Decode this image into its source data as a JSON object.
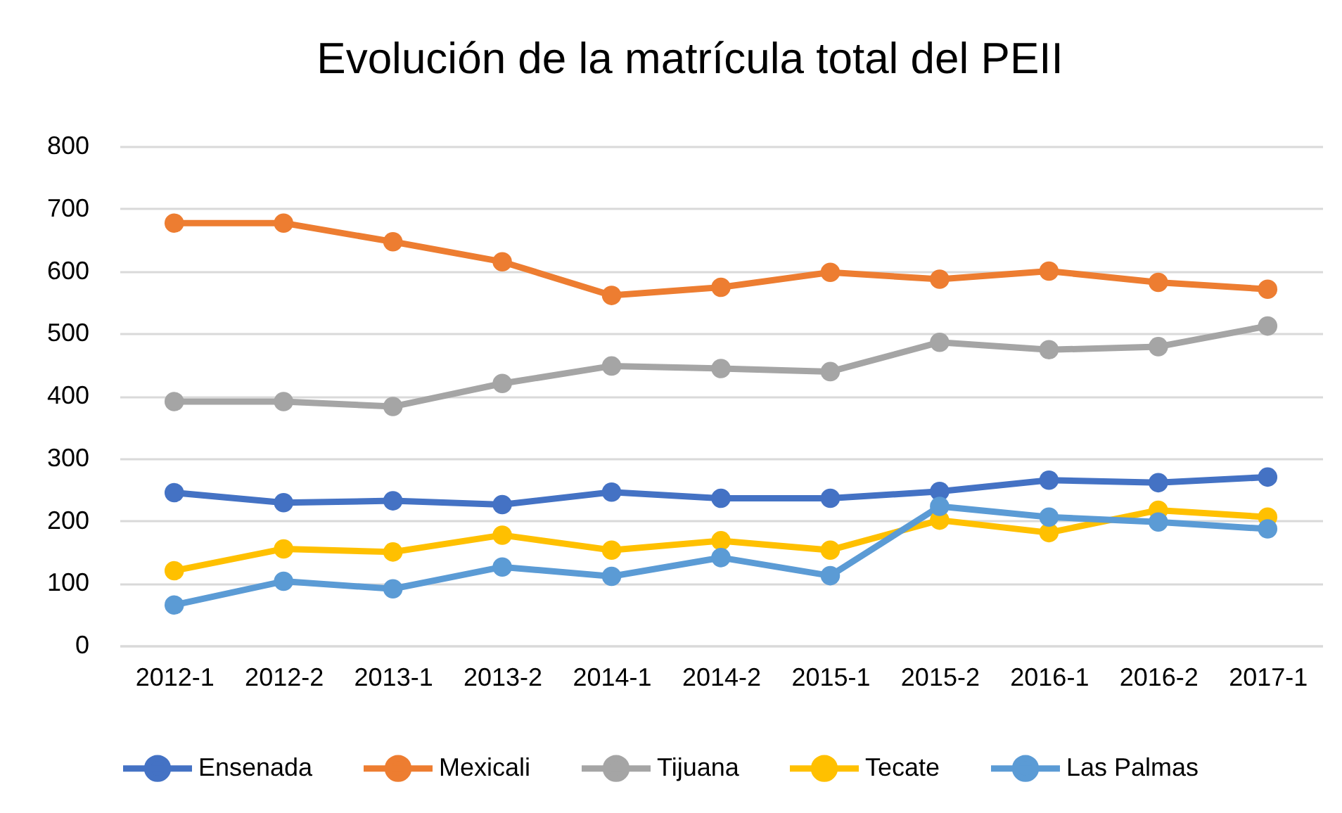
{
  "chart_data": {
    "type": "line",
    "title": "Evolución de la matrícula total del PEII",
    "categories": [
      "2012-1",
      "2012-2",
      "2013-1",
      "2013-2",
      "2014-1",
      "2014-2",
      "2015-1",
      "2015-2",
      "2016-1",
      "2016-2",
      "2017-1"
    ],
    "series": [
      {
        "name": "Ensenada",
        "color": "#4472c4",
        "values": [
          245,
          229,
          232,
          226,
          246,
          236,
          236,
          247,
          265,
          261,
          270
        ]
      },
      {
        "name": "Mexicali",
        "color": "#ed7d31",
        "values": [
          677,
          677,
          647,
          615,
          561,
          574,
          598,
          587,
          600,
          582,
          571
        ]
      },
      {
        "name": "Tijuana",
        "color": "#a5a5a5",
        "values": [
          391,
          391,
          383,
          420,
          448,
          444,
          439,
          486,
          474,
          479,
          512
        ]
      },
      {
        "name": "Tecate",
        "color": "#ffc000",
        "values": [
          120,
          155,
          150,
          177,
          153,
          168,
          153,
          201,
          181,
          217,
          206
        ]
      },
      {
        "name": "Las Palmas",
        "color": "#5b9bd5",
        "values": [
          65,
          103,
          91,
          126,
          111,
          141,
          112,
          223,
          206,
          198,
          187
        ]
      }
    ],
    "ylim": [
      0,
      800
    ],
    "yticks": [
      0,
      100,
      200,
      300,
      400,
      500,
      600,
      700,
      800
    ],
    "grid": "y",
    "legend": "bottom",
    "marker": "circle"
  }
}
